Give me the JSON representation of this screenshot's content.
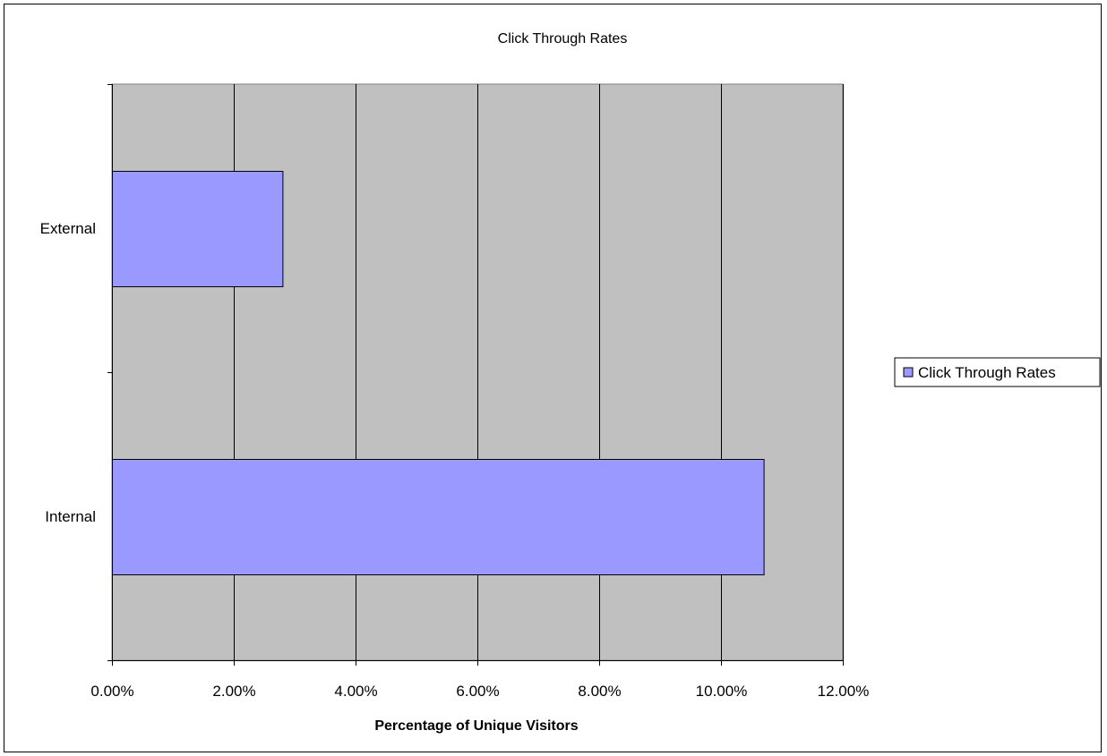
{
  "chart_data": {
    "type": "bar",
    "orientation": "horizontal",
    "title": "Click Through Rates",
    "xlabel": "Percentage of Unique Visitors",
    "ylabel": "",
    "categories": [
      "Internal",
      "External"
    ],
    "series": [
      {
        "name": "Click Through Rates",
        "values": [
          0.107,
          0.028
        ],
        "color": "#9999FF"
      }
    ],
    "xlim": [
      0,
      0.12
    ],
    "xticks": [
      0,
      0.02,
      0.04,
      0.06,
      0.08,
      0.1,
      0.12
    ],
    "xtick_labels": [
      "0.00%",
      "2.00%",
      "4.00%",
      "6.00%",
      "8.00%",
      "10.00%",
      "12.00%"
    ],
    "grid": true,
    "plot_background": "#C0C0C0",
    "legend_position": "right"
  }
}
